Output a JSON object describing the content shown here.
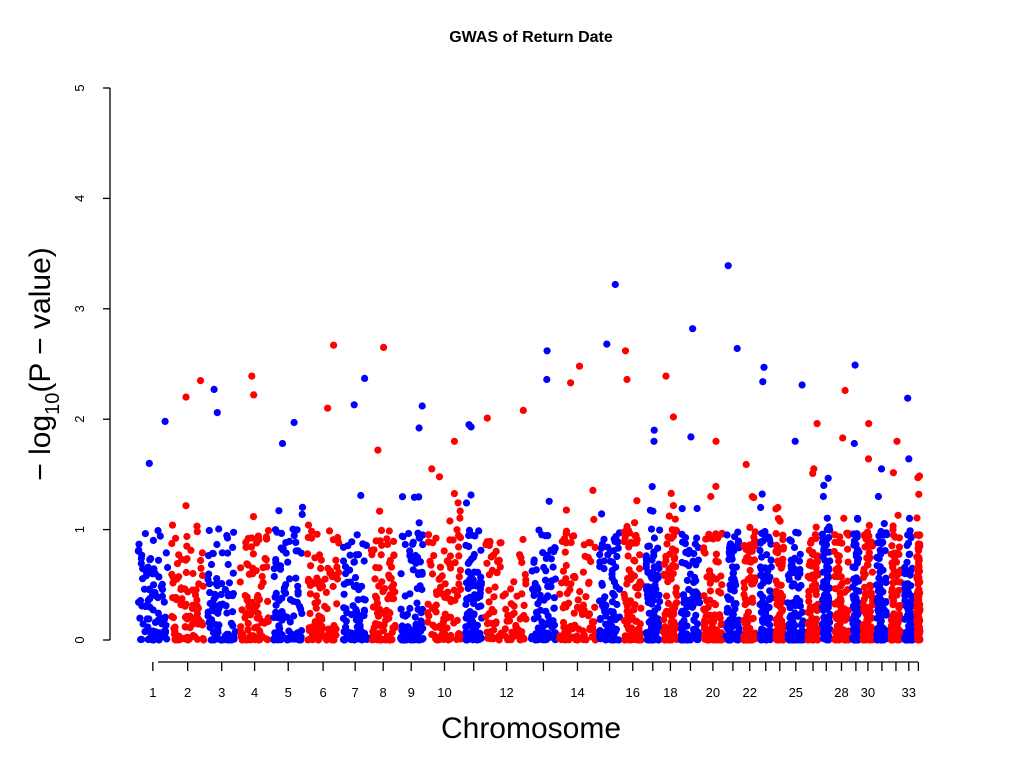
{
  "chart_data": {
    "type": "scatter",
    "subtype": "manhattan",
    "title": "GWAS of Return Date",
    "xlabel": "Chromosome",
    "ylabel": {
      "prefix": "− log",
      "subscript": "10",
      "suffix": "(P − value)"
    },
    "ylim": [
      0,
      5
    ],
    "yticks": [
      "0",
      "1",
      "2",
      "3",
      "4",
      "5"
    ],
    "colors": [
      "#0000ff",
      "#ff0000"
    ],
    "chromosomes": [
      "1",
      "2",
      "3",
      "4",
      "5",
      "6",
      "7",
      "8",
      "9",
      "10",
      "11",
      "12",
      "13",
      "14",
      "15",
      "16",
      "17",
      "18",
      "19",
      "20",
      "21",
      "22",
      "23",
      "24",
      "25",
      "26",
      "27",
      "28",
      "29",
      "30",
      "31",
      "32",
      "33",
      "34"
    ],
    "x_tick_labels": [
      "1",
      "2",
      "3",
      "4",
      "5",
      "6",
      "7",
      "8",
      "9",
      "10",
      "12",
      "14",
      "16",
      "18",
      "20",
      "22",
      "25",
      "28",
      "30",
      "33"
    ],
    "chromosome_sizes": [
      4.2,
      4.5,
      4.0,
      4.2,
      4.2,
      4.5,
      3.5,
      3.5,
      3.5,
      4.8,
      2.5,
      5.7,
      3.5,
      5.0,
      3.0,
      2.8,
      2.2,
      2.2,
      2.8,
      2.8,
      2.2,
      2.0,
      2.0,
      1.5,
      2.5,
      1.8,
      1.5,
      2.3,
      1.3,
      1.7,
      1.8,
      1.7,
      1.5,
      0.9
    ],
    "top_hits": [
      {
        "chromosome": "1",
        "value": 1.98
      },
      {
        "chromosome": "1",
        "value": 1.6
      },
      {
        "chromosome": "2",
        "value": 2.35
      },
      {
        "chromosome": "2",
        "value": 2.2
      },
      {
        "chromosome": "3",
        "value": 2.27
      },
      {
        "chromosome": "3",
        "value": 2.06
      },
      {
        "chromosome": "4",
        "value": 2.39
      },
      {
        "chromosome": "4",
        "value": 2.22
      },
      {
        "chromosome": "5",
        "value": 1.97
      },
      {
        "chromosome": "5",
        "value": 1.78
      },
      {
        "chromosome": "6",
        "value": 2.67
      },
      {
        "chromosome": "6",
        "value": 2.1
      },
      {
        "chromosome": "7",
        "value": 2.37
      },
      {
        "chromosome": "7",
        "value": 2.13
      },
      {
        "chromosome": "8",
        "value": 2.65
      },
      {
        "chromosome": "8",
        "value": 1.72
      },
      {
        "chromosome": "9",
        "value": 2.12
      },
      {
        "chromosome": "9",
        "value": 1.92
      },
      {
        "chromosome": "10",
        "value": 1.8
      },
      {
        "chromosome": "10",
        "value": 1.55
      },
      {
        "chromosome": "11",
        "value": 1.95
      },
      {
        "chromosome": "11",
        "value": 1.93
      },
      {
        "chromosome": "12",
        "value": 2.08
      },
      {
        "chromosome": "12",
        "value": 2.01
      },
      {
        "chromosome": "13",
        "value": 2.62
      },
      {
        "chromosome": "13",
        "value": 2.36
      },
      {
        "chromosome": "14",
        "value": 2.48
      },
      {
        "chromosome": "14",
        "value": 2.33
      },
      {
        "chromosome": "15",
        "value": 3.22
      },
      {
        "chromosome": "15",
        "value": 2.68
      },
      {
        "chromosome": "16",
        "value": 2.62
      },
      {
        "chromosome": "16",
        "value": 2.36
      },
      {
        "chromosome": "17",
        "value": 1.9
      },
      {
        "chromosome": "17",
        "value": 1.8
      },
      {
        "chromosome": "18",
        "value": 2.39
      },
      {
        "chromosome": "18",
        "value": 2.02
      },
      {
        "chromosome": "19",
        "value": 2.82
      },
      {
        "chromosome": "19",
        "value": 1.84
      },
      {
        "chromosome": "20",
        "value": 1.8
      },
      {
        "chromosome": "20",
        "value": 1.3
      },
      {
        "chromosome": "21",
        "value": 3.39
      },
      {
        "chromosome": "21",
        "value": 2.64
      },
      {
        "chromosome": "22",
        "value": 1.59
      },
      {
        "chromosome": "22",
        "value": 1.29
      },
      {
        "chromosome": "23",
        "value": 2.47
      },
      {
        "chromosome": "23",
        "value": 2.34
      },
      {
        "chromosome": "24",
        "value": 1.2
      },
      {
        "chromosome": "24",
        "value": 1.1
      },
      {
        "chromosome": "25",
        "value": 2.31
      },
      {
        "chromosome": "25",
        "value": 1.8
      },
      {
        "chromosome": "26",
        "value": 1.96
      },
      {
        "chromosome": "26",
        "value": 1.55
      },
      {
        "chromosome": "27",
        "value": 1.4
      },
      {
        "chromosome": "27",
        "value": 1.3
      },
      {
        "chromosome": "28",
        "value": 2.26
      },
      {
        "chromosome": "28",
        "value": 1.83
      },
      {
        "chromosome": "29",
        "value": 2.49
      },
      {
        "chromosome": "29",
        "value": 1.78
      },
      {
        "chromosome": "30",
        "value": 1.96
      },
      {
        "chromosome": "30",
        "value": 1.64
      },
      {
        "chromosome": "31",
        "value": 1.55
      },
      {
        "chromosome": "31",
        "value": 1.3
      },
      {
        "chromosome": "32",
        "value": 1.8
      },
      {
        "chromosome": "32",
        "value": 1.0
      },
      {
        "chromosome": "33",
        "value": 2.19
      },
      {
        "chromosome": "33",
        "value": 1.64
      },
      {
        "chromosome": "34",
        "value": 1.47
      },
      {
        "chromosome": "34",
        "value": 1.32
      }
    ],
    "background_points_per_chromosome": 90,
    "background_value_range": [
      0,
      1.0
    ]
  }
}
